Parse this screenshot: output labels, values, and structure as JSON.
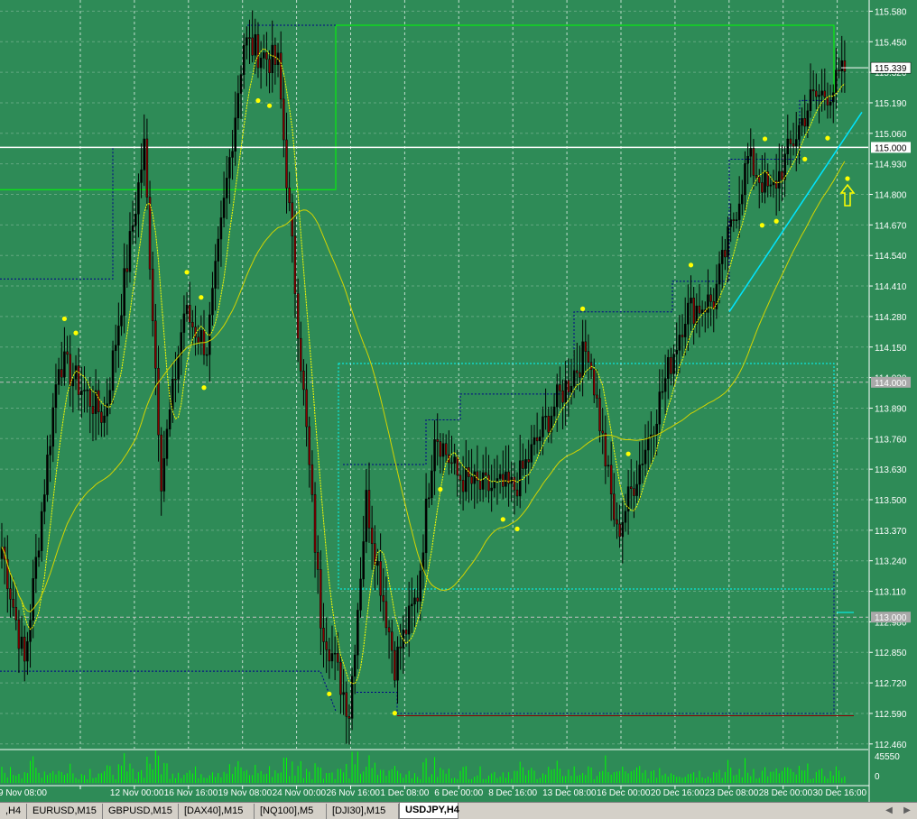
{
  "window": {
    "symbol_tab": "USDJPY,H4"
  },
  "price_axis": {
    "ticks": [
      "115.580",
      "115.450",
      "115.320",
      "115.190",
      "115.060",
      "114.930",
      "114.800",
      "114.670",
      "114.540",
      "114.410",
      "114.280",
      "114.150",
      "114.020",
      "113.890",
      "113.760",
      "113.630",
      "113.500",
      "113.370",
      "113.240",
      "113.110",
      "112.980",
      "112.850",
      "112.720",
      "112.590",
      "112.460"
    ],
    "current_price": "115.339",
    "level_labels": [
      "115.000",
      "114.000",
      "113.000"
    ],
    "volume_labels": [
      "45550",
      "0"
    ]
  },
  "time_axis": {
    "labels": [
      "9 Nov 08:00",
      "12 Nov 00:00",
      "16 Nov 16:00",
      "19 Nov 08:00",
      "24 Nov 00:00",
      "26 Nov 16:00",
      "1 Dec 08:00",
      "6 Dec 00:00",
      "8 Dec 16:00",
      "13 Dec 08:00",
      "16 Dec 00:00",
      "20 Dec 16:00",
      "23 Dec 08:00",
      "28 Dec 00:00",
      "30 Dec 16:00"
    ]
  },
  "tabs": [
    {
      "label": ",H4",
      "active": false
    },
    {
      "label": "EURUSD,M15",
      "active": false
    },
    {
      "label": "GBPUSD,M15",
      "active": false
    },
    {
      "label": "[DAX40],M15",
      "active": false
    },
    {
      "label": "[NQ100],M5",
      "active": false
    },
    {
      "label": "[DJI30],M15",
      "active": false
    },
    {
      "label": "USDJPY,H4",
      "active": true
    }
  ],
  "colors": {
    "background": "#2e8b57",
    "bull_candle": "#000000",
    "bear_candle": "#8b0000",
    "fast_ma": "#ffff00",
    "slow_ma": "#d4d400",
    "trendline": "#00e5ff",
    "green_box": "#00ff00",
    "dots": "#ffff00",
    "volume": "#00ff00"
  },
  "chart_data": {
    "type": "candlestick",
    "symbol": "USDJPY",
    "timeframe": "H4",
    "y_range": [
      112.44,
      115.62
    ],
    "horizontal_levels": [
      115.0,
      114.0,
      113.0
    ],
    "anchors": [
      [
        0,
        113.3
      ],
      [
        8,
        112.8
      ],
      [
        20,
        114.1
      ],
      [
        36,
        113.85
      ],
      [
        50,
        115.0
      ],
      [
        56,
        113.6
      ],
      [
        64,
        114.3
      ],
      [
        72,
        114.15
      ],
      [
        85,
        115.45
      ],
      [
        97,
        115.35
      ],
      [
        112,
        113.0
      ],
      [
        122,
        112.6
      ],
      [
        128,
        113.5
      ],
      [
        138,
        112.8
      ],
      [
        146,
        113.1
      ],
      [
        152,
        113.8
      ],
      [
        160,
        113.6
      ],
      [
        168,
        113.55
      ],
      [
        180,
        113.55
      ],
      [
        194,
        113.9
      ],
      [
        206,
        114.15
      ],
      [
        216,
        113.35
      ],
      [
        228,
        113.8
      ],
      [
        240,
        114.3
      ],
      [
        250,
        114.35
      ],
      [
        262,
        114.95
      ],
      [
        270,
        114.8
      ],
      [
        284,
        115.2
      ],
      [
        292,
        115.25
      ],
      [
        296,
        115.33
      ]
    ],
    "volume_max": 45550
  }
}
